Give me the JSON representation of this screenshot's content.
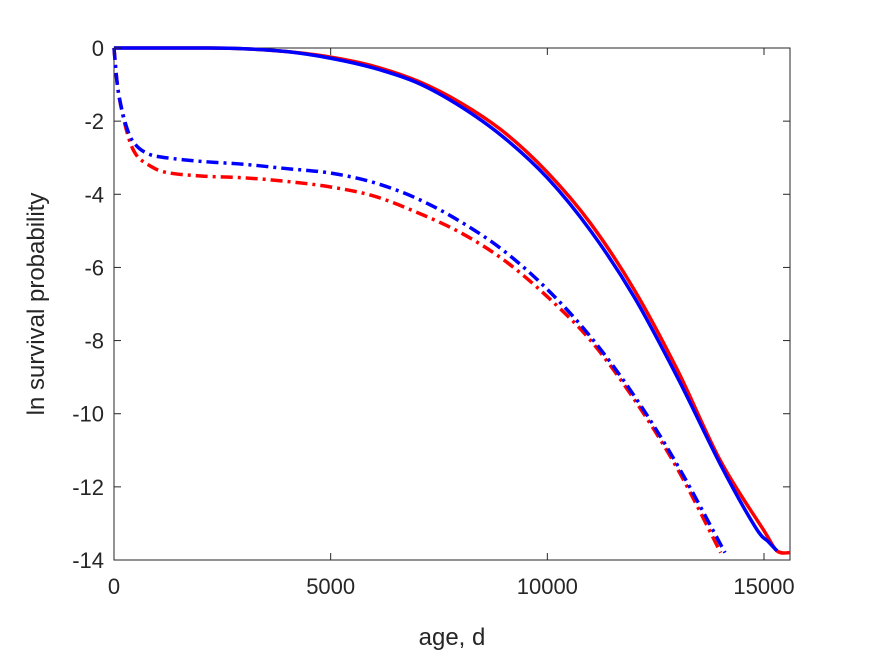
{
  "chart_data": {
    "type": "line",
    "title": "",
    "xlabel": "age, d",
    "ylabel": "ln survival probability",
    "xlim": [
      0,
      15600
    ],
    "ylim": [
      -14,
      0
    ],
    "xticks": [
      0,
      5000,
      10000,
      15000
    ],
    "xtick_labels": [
      "0",
      "5000",
      "10000",
      "15000"
    ],
    "yticks": [
      0,
      -2,
      -4,
      -6,
      -8,
      -10,
      -12,
      -14
    ],
    "ytick_labels": [
      "0",
      "-2",
      "-4",
      "-6",
      "-8",
      "-10",
      "-12",
      "-14"
    ],
    "grid": false,
    "legend": "none",
    "series": [
      {
        "color": "#ff0000",
        "style": "solid",
        "x": [
          0,
          1000,
          2000,
          3000,
          4000,
          5000,
          6000,
          7000,
          8000,
          9000,
          10000,
          11000,
          12000,
          13000,
          14000,
          15000,
          15300,
          15600
        ],
        "y": [
          0,
          0,
          0,
          -0.02,
          -0.1,
          -0.25,
          -0.5,
          -0.9,
          -1.5,
          -2.3,
          -3.4,
          -4.8,
          -6.6,
          -8.8,
          -11.3,
          -13.2,
          -13.75,
          -13.8
        ]
      },
      {
        "color": "#0000ff",
        "style": "solid",
        "x": [
          0,
          1000,
          2000,
          3000,
          4000,
          5000,
          6000,
          7000,
          8000,
          9000,
          10000,
          11000,
          12000,
          13000,
          14000,
          14800,
          15100,
          15300
        ],
        "y": [
          0,
          0,
          0,
          -0.02,
          -0.1,
          -0.28,
          -0.55,
          -0.95,
          -1.6,
          -2.45,
          -3.55,
          -5.0,
          -6.8,
          -9.0,
          -11.4,
          -13.1,
          -13.5,
          -13.75
        ]
      },
      {
        "color": "#ff0000",
        "style": "dashdot",
        "x": [
          0,
          100,
          300,
          500,
          800,
          1200,
          2000,
          3000,
          4000,
          5000,
          6000,
          7000,
          8000,
          9000,
          10000,
          11000,
          12000,
          13000,
          14000
        ],
        "y": [
          0,
          -1.2,
          -2.3,
          -2.9,
          -3.2,
          -3.4,
          -3.5,
          -3.55,
          -3.65,
          -3.8,
          -4.05,
          -4.5,
          -5.05,
          -5.8,
          -6.8,
          -8.0,
          -9.6,
          -11.5,
          -13.8
        ]
      },
      {
        "color": "#0000ff",
        "style": "dashdot",
        "x": [
          0,
          100,
          300,
          500,
          800,
          1200,
          2000,
          3000,
          4000,
          5000,
          6000,
          7000,
          8000,
          9000,
          10000,
          11000,
          12000,
          13000,
          14100
        ],
        "y": [
          0,
          -1.2,
          -2.2,
          -2.65,
          -2.9,
          -3.0,
          -3.1,
          -3.18,
          -3.3,
          -3.42,
          -3.68,
          -4.12,
          -4.75,
          -5.55,
          -6.6,
          -7.9,
          -9.5,
          -11.4,
          -13.8
        ]
      }
    ]
  }
}
